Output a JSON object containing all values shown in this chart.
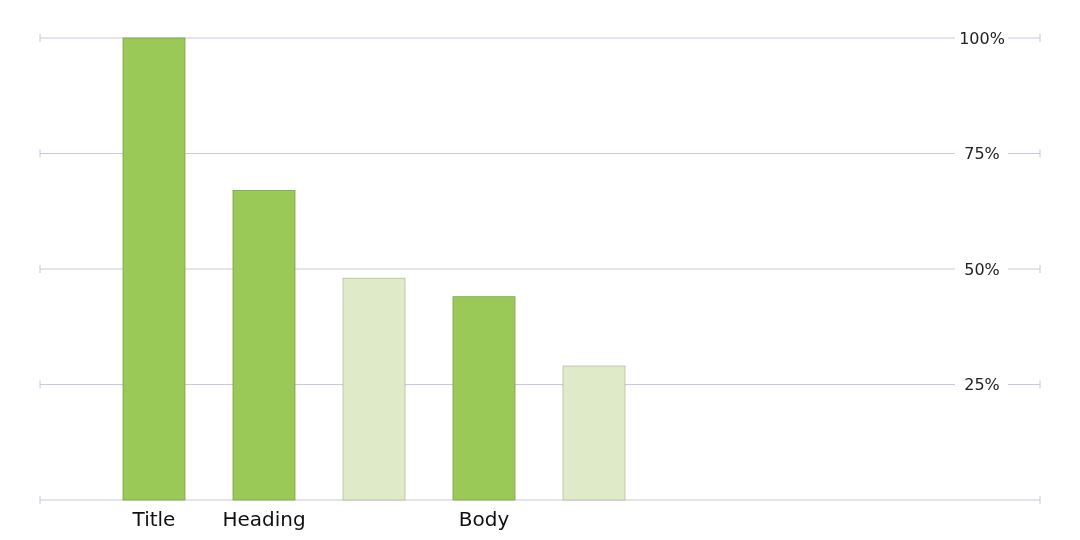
{
  "chart_data": {
    "type": "bar",
    "categories": [
      "Title",
      "Heading",
      null,
      "Body",
      null,
      null,
      null,
      null,
      null
    ],
    "values": [
      100,
      67,
      48,
      44,
      29,
      null,
      null,
      null,
      null
    ],
    "colors": [
      "#9bc958",
      "#9bc958",
      "#dfebc8",
      "#9bc958",
      "#dfebc8",
      null,
      null,
      null,
      null
    ],
    "ylim": [
      0,
      100
    ],
    "yticks": [
      {
        "value": 0,
        "label": null
      },
      {
        "value": 25,
        "label": "25%"
      },
      {
        "value": 50,
        "label": "50%"
      },
      {
        "value": 75,
        "label": "75%"
      },
      {
        "value": 100,
        "label": "100%"
      }
    ],
    "grid": "y"
  }
}
